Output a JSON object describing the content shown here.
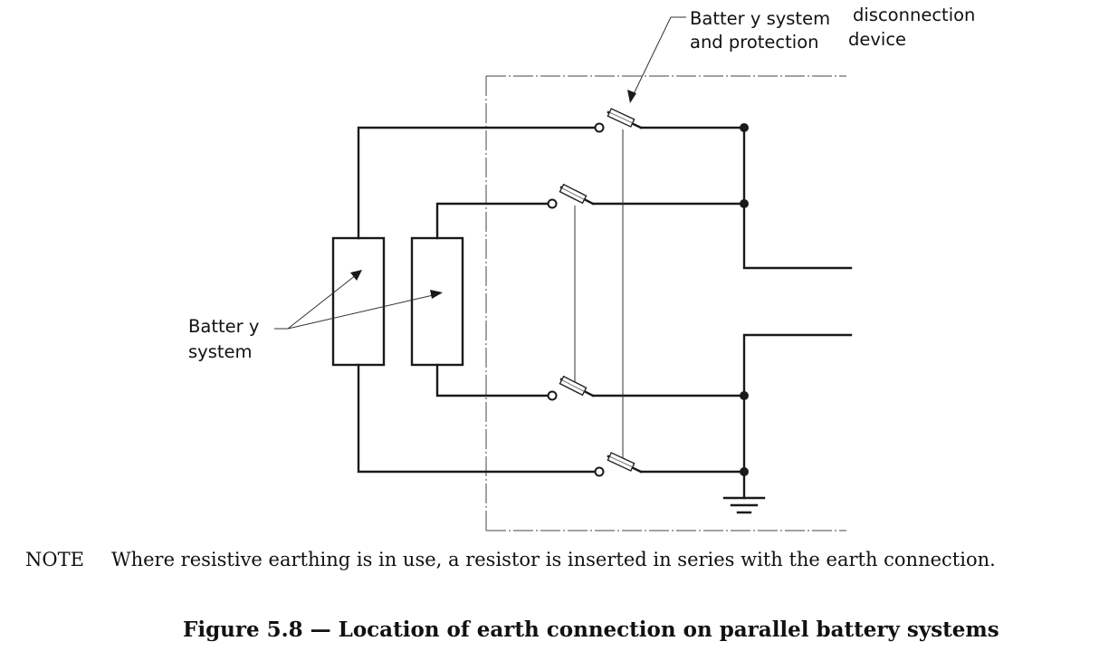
{
  "labels": {
    "device_line1": "Batter y system",
    "device_line1b": "disconnection",
    "device_line2": "and protection",
    "device_line2b": "device",
    "battery_line1": "Batter y",
    "battery_line2": "system"
  },
  "note": {
    "tag": "NOTE",
    "text": "Where resistive earthing is in use, a resistor is inserted in series with the earth connection."
  },
  "caption": "Figure 5.8 — Location of earth connection on parallel battery systems"
}
